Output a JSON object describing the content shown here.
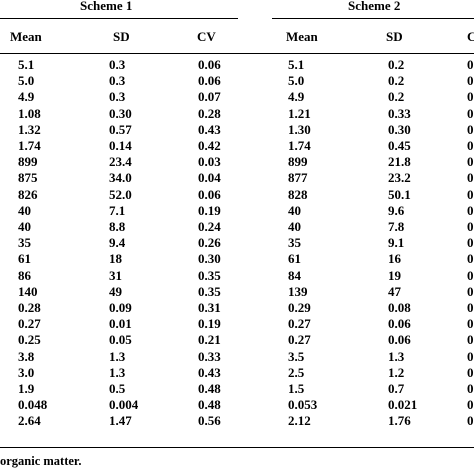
{
  "groups": [
    {
      "label": "Scheme 1"
    },
    {
      "label": "Scheme 2"
    }
  ],
  "columns": [
    "Mean",
    "SD",
    "CV",
    "Mean",
    "SD",
    "C"
  ],
  "rows": [
    [
      "5.1",
      "0.3",
      "0.06",
      "5.1",
      "0.2",
      "0"
    ],
    [
      "5.0",
      "0.3",
      "0.06",
      "5.0",
      "0.2",
      "0"
    ],
    [
      "4.9",
      "0.3",
      "0.07",
      "4.9",
      "0.2",
      "0"
    ],
    [
      "1.08",
      "0.30",
      "0.28",
      "1.21",
      "0.33",
      "0"
    ],
    [
      "1.32",
      "0.57",
      "0.43",
      "1.30",
      "0.30",
      "0"
    ],
    [
      "1.74",
      "0.14",
      "0.42",
      "1.74",
      "0.45",
      "0"
    ],
    [
      "899",
      "23.4",
      "0.03",
      "899",
      "21.8",
      "0"
    ],
    [
      "875",
      "34.0",
      "0.04",
      "877",
      "23.2",
      "0"
    ],
    [
      "826",
      "52.0",
      "0.06",
      "828",
      "50.1",
      "0"
    ],
    [
      "40",
      "7.1",
      "0.19",
      "40",
      "9.6",
      "0"
    ],
    [
      "40",
      "8.8",
      "0.24",
      "40",
      "7.8",
      "0"
    ],
    [
      "35",
      "9.4",
      "0.26",
      "35",
      "9.1",
      "0"
    ],
    [
      "61",
      "18",
      "0.30",
      "61",
      "16",
      "0"
    ],
    [
      "86",
      "31",
      "0.35",
      "84",
      "19",
      "0"
    ],
    [
      "140",
      "49",
      "0.35",
      "139",
      "47",
      "0"
    ],
    [
      "0.28",
      "0.09",
      "0.31",
      "0.29",
      "0.08",
      "0"
    ],
    [
      "0.27",
      "0.01",
      "0.19",
      "0.27",
      "0.06",
      "0"
    ],
    [
      "0.25",
      "0.05",
      "0.21",
      "0.27",
      "0.06",
      "0"
    ],
    [
      "3.8",
      "1.3",
      "0.33",
      "3.5",
      "1.3",
      "0"
    ],
    [
      "3.0",
      "1.3",
      "0.43",
      "2.5",
      "1.2",
      "0"
    ],
    [
      "1.9",
      "0.5",
      "0.48",
      "1.5",
      "0.7",
      "0"
    ],
    [
      "0.048",
      "0.004",
      "0.48",
      "0.053",
      "0.021",
      "0"
    ],
    [
      "2.64",
      "1.47",
      "0.56",
      "2.12",
      "1.76",
      "0"
    ]
  ],
  "footnote": "organic matter."
}
